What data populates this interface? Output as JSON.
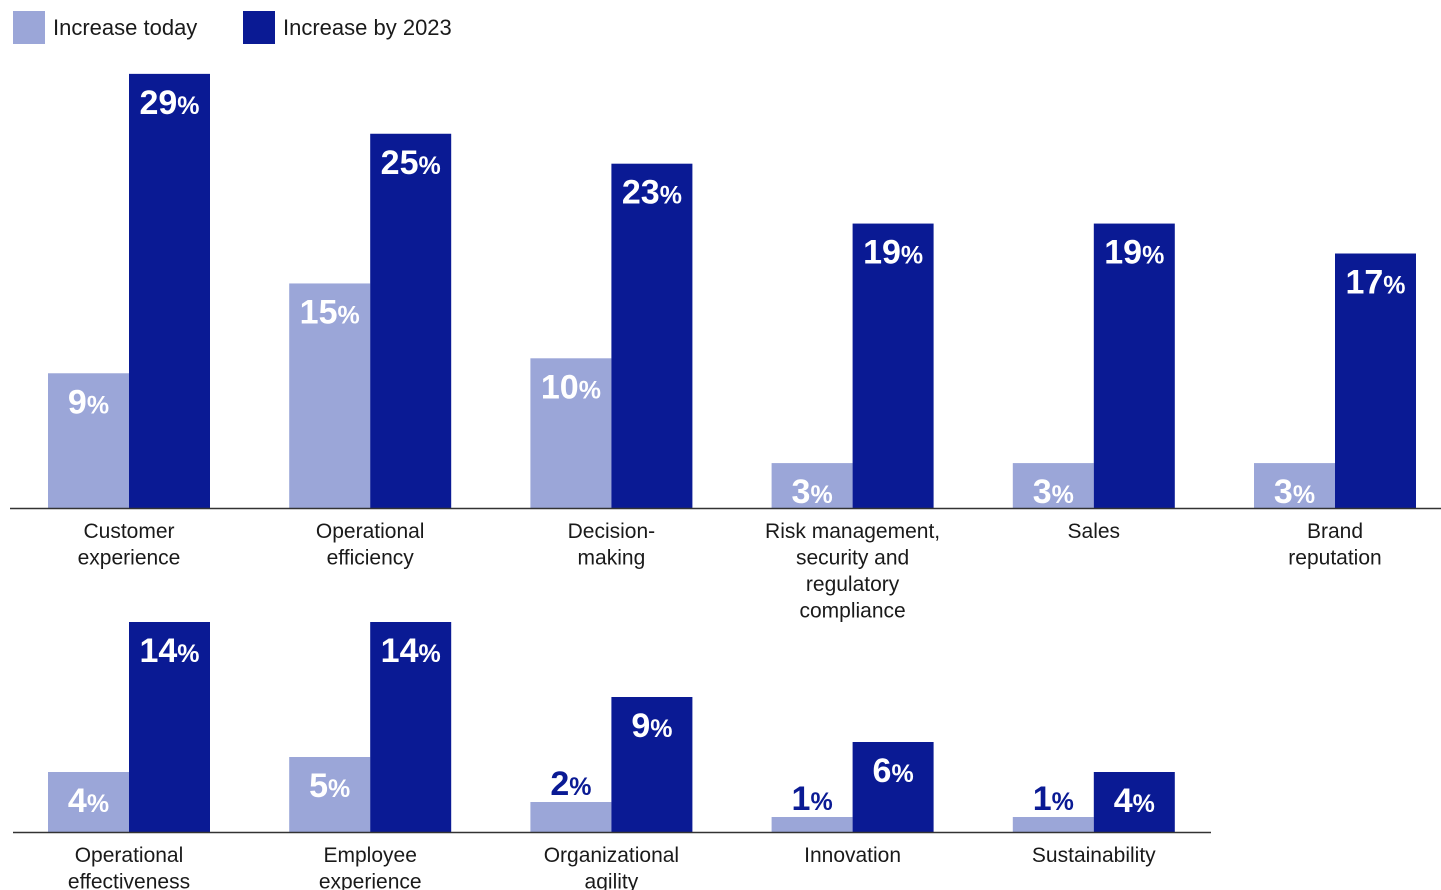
{
  "legend": {
    "today_label": "Increase today",
    "future_label": "Increase by 2023"
  },
  "colors": {
    "today": "#9BA6D8",
    "future": "#0A1A94",
    "axis": "#333333",
    "label_on_bar": "#ffffff",
    "label_above_bar": "#0A1A94"
  },
  "chart_data": [
    {
      "type": "bar",
      "categories": [
        [
          "Customer",
          "experience"
        ],
        [
          "Operational",
          "efficiency"
        ],
        [
          "Decision-",
          "making"
        ],
        [
          "Risk management,",
          "security and",
          "regulatory",
          "compliance"
        ],
        [
          "Sales"
        ],
        [
          "Brand",
          "reputation"
        ]
      ],
      "series": [
        {
          "name": "Increase today",
          "values": [
            9,
            15,
            10,
            3,
            3,
            3
          ]
        },
        {
          "name": "Increase by 2023",
          "values": [
            29,
            25,
            23,
            19,
            19,
            17
          ]
        }
      ],
      "value_suffix": "%"
    },
    {
      "type": "bar",
      "categories": [
        [
          "Operational",
          "effectiveness"
        ],
        [
          "Employee",
          "experience"
        ],
        [
          "Organizational",
          "agility"
        ],
        [
          "Innovation"
        ],
        [
          "Sustainability"
        ]
      ],
      "series": [
        {
          "name": "Increase today",
          "values": [
            4,
            5,
            2,
            1,
            1
          ]
        },
        {
          "name": "Increase by 2023",
          "values": [
            14,
            14,
            9,
            6,
            4
          ]
        }
      ],
      "value_suffix": "%"
    }
  ]
}
